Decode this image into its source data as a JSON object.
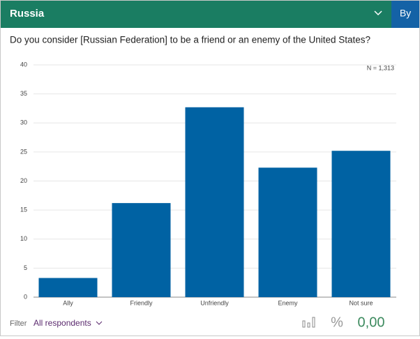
{
  "header": {
    "title": "Russia",
    "button": "By"
  },
  "chart_data": {
    "type": "bar",
    "title": "Do you consider [Russian Federation] to be a friend or an enemy of the United States?",
    "annotation": "N = 1,313",
    "categories": [
      "Ally",
      "Friendly",
      "Unfriendly",
      "Enemy",
      "Not sure"
    ],
    "values": [
      3.3,
      16.2,
      32.7,
      22.3,
      25.2
    ],
    "color": "#0062a3",
    "ylim": [
      0,
      40
    ],
    "yticks": [
      0,
      5,
      10,
      15,
      20,
      25,
      30,
      35,
      40
    ],
    "grid": true
  },
  "footer": {
    "filter_label": "Filter",
    "filter_value": "All respondents",
    "percent": "%",
    "value": "0,00"
  }
}
